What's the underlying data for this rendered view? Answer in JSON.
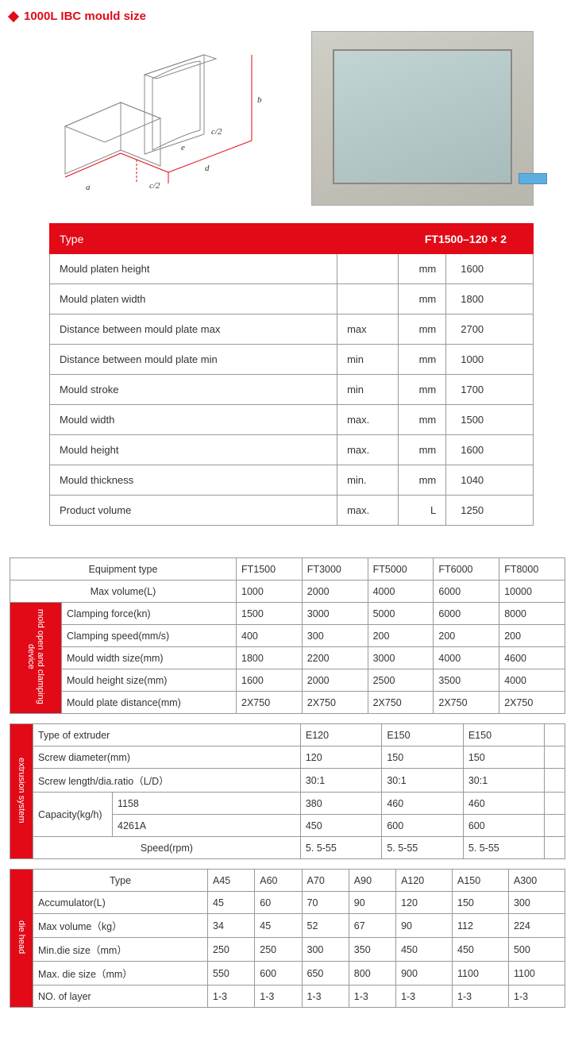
{
  "colors": {
    "accent": "#e20a17",
    "border": "#999999",
    "text": "#333333"
  },
  "title": "1000L IBC mould size",
  "diagram_labels": {
    "a": "a",
    "b": "b",
    "c2": "c/2",
    "d": "d",
    "e": "e"
  },
  "table1": {
    "header_left": "Type",
    "header_right": "FT1500–120 × 2",
    "rows": [
      {
        "label": "Mould platen height",
        "qual": "",
        "unit": "mm",
        "val": "1600"
      },
      {
        "label": "Mould platen width",
        "qual": "",
        "unit": "mm",
        "val": "1800"
      },
      {
        "label": "Distance between mould plate max",
        "qual": "max",
        "unit": "mm",
        "val": "2700"
      },
      {
        "label": "Distance between mould plate min",
        "qual": "min",
        "unit": "mm",
        "val": "1000"
      },
      {
        "label": "Mould stroke",
        "qual": "min",
        "unit": "mm",
        "val": "1700"
      },
      {
        "label": "Mould width",
        "qual": "max.",
        "unit": "mm",
        "val": "1500"
      },
      {
        "label": "Mould height",
        "qual": "max.",
        "unit": "mm",
        "val": "1600"
      },
      {
        "label": "Mould thickness",
        "qual": "min.",
        "unit": "mm",
        "val": "1040"
      },
      {
        "label": "Product volume",
        "qual": "max.",
        "unit": "L",
        "val": "1250"
      }
    ]
  },
  "table2": {
    "header_labels": {
      "equipment_type": "Equipment type",
      "max_volume": "Max volume(L)"
    },
    "models": [
      "FT1500",
      "FT3000",
      "FT5000",
      "FT6000",
      "FT8000"
    ],
    "max_volume": [
      "1000",
      "2000",
      "4000",
      "6000",
      "10000"
    ],
    "section_mold": {
      "title": "mold open and\nclamping device",
      "rows": [
        {
          "label": "Clamping force(kn)",
          "vals": [
            "1500",
            "3000",
            "5000",
            "6000",
            "8000"
          ]
        },
        {
          "label": "Clamping speed(mm/s)",
          "vals": [
            "400",
            "300",
            "200",
            "200",
            "200"
          ]
        },
        {
          "label": "Mould width size(mm)",
          "vals": [
            "1800",
            "2200",
            "3000",
            "4000",
            "4600"
          ]
        },
        {
          "label": "Mould height size(mm)",
          "vals": [
            "1600",
            "2000",
            "2500",
            "3500",
            "4000"
          ]
        },
        {
          "label": "Mould plate distance(mm)",
          "vals": [
            "2X750",
            "2X750",
            "2X750",
            "2X750",
            "2X750"
          ]
        }
      ]
    },
    "section_extrusion": {
      "title": "extrusion system",
      "rows_simple": [
        {
          "label": "Type of extruder",
          "vals": [
            "E120",
            "E150",
            "E150"
          ]
        },
        {
          "label": "Screw diameter(mm)",
          "vals": [
            "120",
            "150",
            "150"
          ]
        },
        {
          "label": "Screw length/dia.ratio（L/D）",
          "vals": [
            "30:1",
            "30:1",
            "30:1"
          ]
        }
      ],
      "capacity_label": "Capacity(kg/h)",
      "capacity_rows": [
        {
          "sub": "1158",
          "vals": [
            "380",
            "460",
            "460"
          ]
        },
        {
          "sub": "4261A",
          "vals": [
            "450",
            "600",
            "600"
          ]
        }
      ],
      "speed": {
        "label": "Speed(rpm)",
        "vals": [
          "5. 5-55",
          "5. 5-55",
          "5. 5-55"
        ]
      }
    },
    "section_die": {
      "title": "die head",
      "type_label": "Type",
      "types": [
        "A45",
        "A60",
        "A70",
        "A90",
        "A120",
        "A150",
        "A300"
      ],
      "rows": [
        {
          "label": "Accumulator(L)",
          "vals": [
            "45",
            "60",
            "70",
            "90",
            "120",
            "150",
            "300"
          ]
        },
        {
          "label": "Max volume（kg）",
          "vals": [
            "34",
            "45",
            "52",
            "67",
            "90",
            "112",
            "224"
          ]
        },
        {
          "label": "Min.die size（mm）",
          "vals": [
            "250",
            "250",
            "300",
            "350",
            "450",
            "450",
            "500"
          ]
        },
        {
          "label": "Max. die size（mm）",
          "vals": [
            "550",
            "600",
            "650",
            "800",
            "900",
            "1100",
            "1100"
          ]
        },
        {
          "label": "NO. of layer",
          "vals": [
            "1-3",
            "1-3",
            "1-3",
            "1-3",
            "1-3",
            "1-3",
            "1-3"
          ]
        }
      ]
    }
  }
}
